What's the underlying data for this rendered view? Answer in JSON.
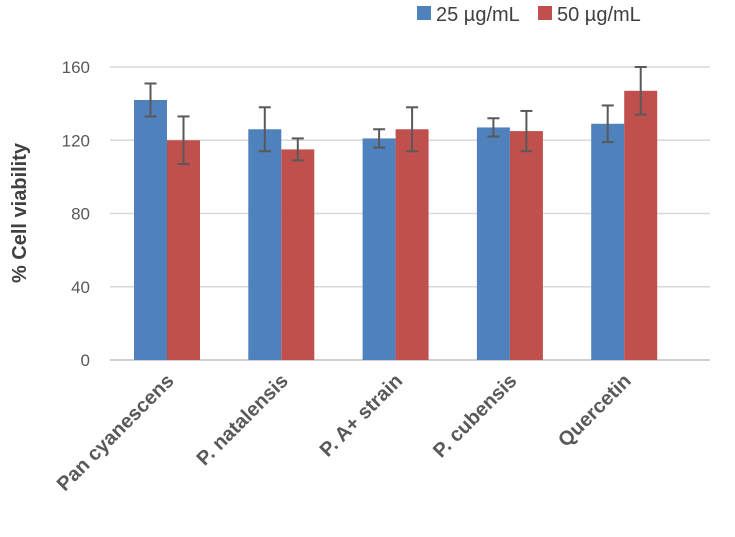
{
  "chart_data": {
    "type": "bar",
    "title": "",
    "xlabel": "",
    "ylabel": "% Cell viability",
    "ylim": [
      0,
      160
    ],
    "yticks": [
      0,
      40,
      80,
      120,
      160
    ],
    "grid": true,
    "legend_position": "top-right",
    "categories": [
      "Pan cyanescens",
      "P. natalensis",
      "P. A+ strain",
      "P. cubensis",
      "Quercetin"
    ],
    "series": [
      {
        "name": "25 µg/mL",
        "color": "#4f81bd",
        "values": [
          142,
          126,
          121,
          127,
          129
        ],
        "errors": [
          9,
          12,
          5,
          5,
          10
        ]
      },
      {
        "name": "50 µg/mL",
        "color": "#c0504d",
        "values": [
          120,
          115,
          126,
          125,
          147
        ],
        "errors": [
          13,
          6,
          12,
          11,
          13
        ]
      }
    ]
  }
}
